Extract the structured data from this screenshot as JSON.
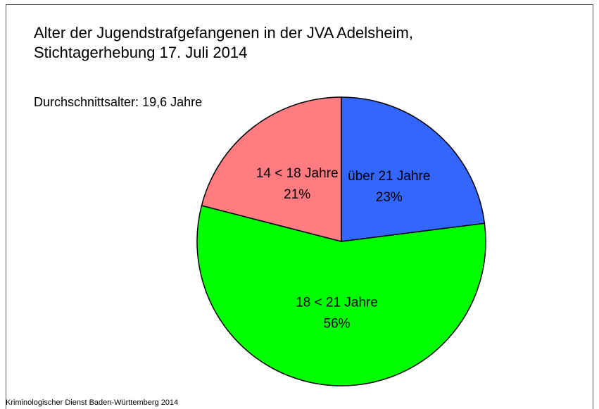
{
  "chart_data": {
    "type": "pie",
    "title_lines": [
      "Alter der Jugendstrafgefangenen in der JVA Adelsheim,",
      "Stichtagerhebung 17. Juli 2014"
    ],
    "annotation": "Durchschnittsalter: 19,6 Jahre",
    "source": "Kriminologischer Dienst Baden-Württemberg 2014",
    "categories": [
      "über 21 Jahre",
      "18 < 21 Jahre",
      "14 < 18 Jahre"
    ],
    "values": [
      23,
      56,
      21
    ],
    "value_labels": [
      "23%",
      "56%",
      "21%"
    ],
    "colors": [
      "#3366ff",
      "#00ff00",
      "#ff7c80"
    ],
    "start_angle": 0,
    "direction": "clockwise"
  }
}
